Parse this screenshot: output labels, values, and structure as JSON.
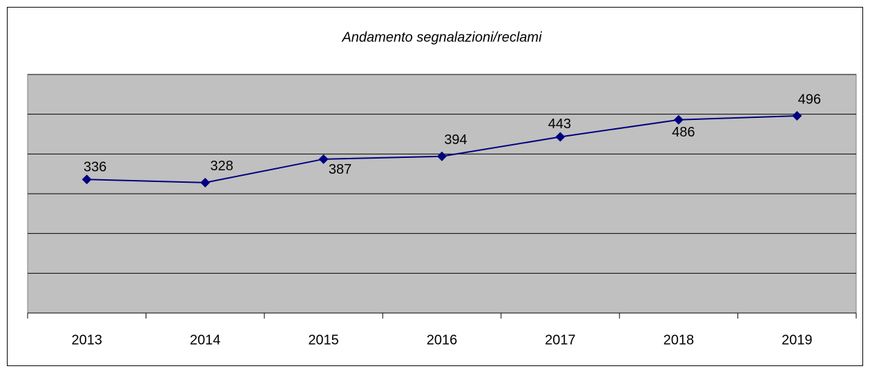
{
  "chart_data": {
    "type": "line",
    "title": "Andamento segnalazioni/reclami",
    "categories": [
      "2013",
      "2014",
      "2015",
      "2016",
      "2017",
      "2018",
      "2019"
    ],
    "values": [
      336,
      328,
      387,
      394,
      443,
      486,
      496
    ],
    "color": "#000080",
    "ylim": [
      0,
      600
    ],
    "yticks": [
      0,
      100,
      200,
      300,
      400,
      500,
      600
    ],
    "grid": true
  }
}
